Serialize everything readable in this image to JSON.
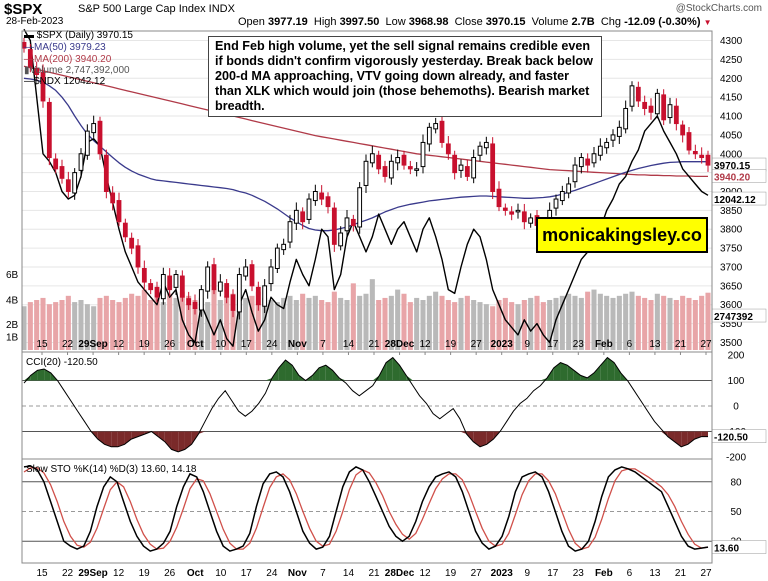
{
  "header": {
    "symbol": "$SPX",
    "description": "S&P 500 Large Cap Index INDX",
    "date": "28-Feb-2023",
    "watermark": "@StockCharts.com",
    "open_label": "Open",
    "open": "3977.19",
    "high_label": "High",
    "high": "3997.50",
    "low_label": "Low",
    "low": "3968.98",
    "close_label": "Close",
    "close": "3970.15",
    "volume_label": "Volume",
    "volume": "2.7B",
    "chg_label": "Chg",
    "chg": "-12.09 (-0.30%)"
  },
  "legend": {
    "spx": "$SPX (Daily) 3970.15",
    "ma50": "MA(50) 3979.23",
    "ma200": "MA(200) 3940.20",
    "volume": "Volume 2,747,392,000",
    "ndx": "$NDX 12042.12"
  },
  "annotation": "End Feb high volume, yet the sell signal remains credible even if bonds didn't confirm vigorously yesterday. Break back below 200-d MA approaching, VTV going down already, and faster than XLK which would join (those behemoths). Bearish market breadth.",
  "brand": "monicakingsley.co",
  "colors": {
    "up": "#000000",
    "down": "#c8102e",
    "ma50": "#3a3a8c",
    "ma200": "#b03a48",
    "ndx": "#000000",
    "vol_up": "#b9b9b9",
    "vol_down": "#e8a5a8",
    "cci_pos": "#2e6b2e",
    "cci_neg": "#7a2a2a",
    "sto_k": "#000000",
    "sto_d": "#d0504a"
  },
  "chart_data": [
    {
      "type": "candlestick",
      "title": "$SPX (Daily)",
      "ylim": [
        3480,
        4320
      ],
      "y_ticks": [
        3500,
        3550,
        3600,
        3650,
        3700,
        3750,
        3800,
        3850,
        3900,
        3950,
        4000,
        4050,
        4100,
        4150,
        4200,
        4250,
        4300
      ],
      "x_tick_labels": [
        "15",
        "22",
        "29Sep",
        "12",
        "19",
        "26",
        "Oct",
        "10",
        "17",
        "24",
        "Nov",
        "7",
        "14",
        "21",
        "28Dec",
        "12",
        "19",
        "27",
        "2023",
        "9",
        "17",
        "23",
        "Feb",
        "6",
        "13",
        "21",
        "27"
      ],
      "value_tags": {
        "close": "3970.15",
        "ma50": "3979.23",
        "ma200": "3940.20",
        "ndx": "12042.12",
        "volume": "2747392"
      },
      "series": [
        {
          "name": "$SPX (Daily)",
          "close": [
            4280,
            4230,
            4210,
            4140,
            3990,
            3960,
            3935,
            3900,
            3950,
            4000,
            4060,
            4080,
            4000,
            3900,
            3870,
            3820,
            3780,
            3750,
            3700,
            3660,
            3640,
            3620,
            3680,
            3640,
            3680,
            3620,
            3600,
            3590,
            3640,
            3700,
            3640,
            3660,
            3620,
            3585,
            3680,
            3700,
            3650,
            3600,
            3650,
            3700,
            3750,
            3760,
            3820,
            3850,
            3820,
            3880,
            3900,
            3880,
            3860,
            3760,
            3790,
            3830,
            3810,
            3910,
            3980,
            4000,
            3960,
            3940,
            3980,
            3990,
            3970,
            3960,
            3960,
            4030,
            4070,
            4080,
            4030,
            4000,
            3950,
            3970,
            3940,
            3990,
            4020,
            4030,
            3900,
            3860,
            3850,
            3840,
            3850,
            3820,
            3830,
            3810,
            3800,
            3850,
            3880,
            3900,
            3920,
            3970,
            3990,
            3970,
            4000,
            4020,
            4030,
            4050,
            4070,
            4120,
            4180,
            4140,
            4120,
            4110,
            4160,
            4090,
            4130,
            4080,
            4050,
            4010,
            4000,
            3990,
            3970
          ]
        },
        {
          "name": "MA(50)",
          "values": [
            4200,
            4198,
            4195,
            4190,
            4180,
            4168,
            4150,
            4128,
            4100,
            4075,
            4052,
            4035,
            4020,
            4005,
            3990,
            3976,
            3964,
            3954,
            3946,
            3940,
            3934,
            3930,
            3928,
            3926,
            3924,
            3922,
            3920,
            3918,
            3916,
            3914,
            3912,
            3910,
            3908,
            3905,
            3900,
            3896,
            3890,
            3882,
            3874,
            3864,
            3854,
            3842,
            3830,
            3820,
            3810,
            3802,
            3798,
            3796,
            3796,
            3798,
            3802,
            3806,
            3812,
            3818,
            3824,
            3830,
            3838,
            3846,
            3852,
            3858,
            3862,
            3866,
            3869,
            3872,
            3875,
            3877,
            3879,
            3881,
            3883,
            3885,
            3886,
            3887,
            3888,
            3888,
            3887,
            3886,
            3885,
            3884,
            3883,
            3882,
            3882,
            3883,
            3884,
            3886,
            3889,
            3893,
            3898,
            3903,
            3909,
            3915,
            3921,
            3927,
            3933,
            3939,
            3945,
            3951,
            3956,
            3961,
            3965,
            3969,
            3972,
            3975,
            3977,
            3978,
            3979,
            3979,
            3979,
            3979,
            3979
          ]
        },
        {
          "name": "MA(200)",
          "values": [
            4232,
            4228,
            4224,
            4220,
            4216,
            4212,
            4208,
            4204,
            4200,
            4196,
            4192,
            4188,
            4184,
            4180,
            4176,
            4172,
            4168,
            4164,
            4160,
            4156,
            4152,
            4148,
            4144,
            4140,
            4136,
            4132,
            4128,
            4124,
            4120,
            4116,
            4112,
            4108,
            4104,
            4100,
            4096,
            4092,
            4088,
            4084,
            4080,
            4076,
            4072,
            4068,
            4064,
            4060,
            4056,
            4052,
            4048,
            4045,
            4042,
            4039,
            4036,
            4033,
            4030,
            4027,
            4024,
            4021,
            4018,
            4015,
            4012,
            4009,
            4006,
            4003,
            4000,
            3998,
            3996,
            3994,
            3992,
            3990,
            3988,
            3986,
            3984,
            3982,
            3980,
            3978,
            3976,
            3974,
            3972,
            3970,
            3968,
            3966,
            3964,
            3962,
            3960,
            3958,
            3957,
            3956,
            3955,
            3954,
            3953,
            3952,
            3951,
            3950,
            3949,
            3948,
            3947,
            3946,
            3945,
            3944,
            3944,
            3943,
            3943,
            3942,
            3942,
            3941,
            3941,
            3941,
            3940,
            3940,
            3940
          ]
        },
        {
          "name": "$NDX",
          "values": [
            4330,
            4300,
            4150,
            4000,
            3980,
            3950,
            3900,
            3880,
            3890,
            3940,
            4030,
            4040,
            4020,
            3940,
            3870,
            3800,
            3740,
            3700,
            3660,
            3640,
            3620,
            3600,
            3660,
            3620,
            3640,
            3560,
            3520,
            3500,
            3600,
            3560,
            3520,
            3560,
            3510,
            3490,
            3600,
            3640,
            3580,
            3530,
            3560,
            3620,
            3600,
            3590,
            3660,
            3720,
            3680,
            3650,
            3720,
            3800,
            3780,
            3640,
            3680,
            3780,
            3820,
            3780,
            3740,
            3780,
            3840,
            3800,
            3760,
            3800,
            3820,
            3780,
            3740,
            3800,
            3830,
            3780,
            3720,
            3640,
            3630,
            3700,
            3760,
            3800,
            3780,
            3720,
            3640,
            3600,
            3560,
            3540,
            3520,
            3560,
            3530,
            3550,
            3520,
            3500,
            3560,
            3600,
            3640,
            3680,
            3720,
            3740,
            3760,
            3800,
            3850,
            3880,
            3920,
            3940,
            3980,
            4010,
            4060,
            4080,
            4100,
            4060,
            4030,
            4000,
            3960,
            3940,
            3920,
            3900,
            3890
          ]
        },
        {
          "name": "Volume",
          "values": [
            2.1,
            2.3,
            2.4,
            2.5,
            2.2,
            2.3,
            2.4,
            2.6,
            2.3,
            2.4,
            2.2,
            2.1,
            2.5,
            2.6,
            2.4,
            2.3,
            2.5,
            2.7,
            2.6,
            2.9,
            2.4,
            2.5,
            2.3,
            2.7,
            2.5,
            2.8,
            2.6,
            2.4,
            2.5,
            2.3,
            2.9,
            2.4,
            2.6,
            2.7,
            2.4,
            2.5,
            2.6,
            2.8,
            2.5,
            2.4,
            2.3,
            2.5,
            2.6,
            2.4,
            2.7,
            2.5,
            2.6,
            2.4,
            2.3,
            2.8,
            2.5,
            2.4,
            3.2,
            2.6,
            2.7,
            3.4,
            2.4,
            2.5,
            2.6,
            2.9,
            2.7,
            2.3,
            2.5,
            2.4,
            2.6,
            2.8,
            2.6,
            2.4,
            2.3,
            2.5,
            2.6,
            2.4,
            2.3,
            2.2,
            2.1,
            2.4,
            2.5,
            2.3,
            2.2,
            2.4,
            2.5,
            2.6,
            2.3,
            2.4,
            2.5,
            2.6,
            2.7,
            2.6,
            2.5,
            2.8,
            2.9,
            2.7,
            2.6,
            2.5,
            2.6,
            2.7,
            2.8,
            2.6,
            2.5,
            2.4,
            2.7,
            2.6,
            2.5,
            2.4,
            2.6,
            2.5,
            2.4,
            2.6,
            2.75
          ]
        }
      ]
    },
    {
      "type": "area",
      "title": "CCI(20) -120.50",
      "ylim": [
        -200,
        200
      ],
      "y_ticks": [
        -200,
        -100,
        0,
        100,
        200
      ],
      "reference_lines": [
        100,
        0,
        -100
      ],
      "value_tags": {
        "cci": "-120.50"
      },
      "series": [
        {
          "name": "CCI(20)",
          "values": [
            90,
            120,
            140,
            145,
            130,
            100,
            60,
            20,
            -20,
            -60,
            -100,
            -130,
            -150,
            -160,
            -160,
            -150,
            -130,
            -120,
            -110,
            -100,
            -120,
            -140,
            -170,
            -180,
            -170,
            -150,
            -110,
            -60,
            -10,
            30,
            60,
            20,
            -20,
            -40,
            -20,
            10,
            50,
            110,
            150,
            180,
            160,
            120,
            100,
            120,
            150,
            160,
            140,
            110,
            90,
            60,
            40,
            60,
            80,
            120,
            170,
            190,
            160,
            120,
            80,
            40,
            10,
            -30,
            -50,
            -30,
            -10,
            -50,
            -110,
            -140,
            -160,
            -150,
            -130,
            -100,
            -60,
            -20,
            10,
            30,
            60,
            80,
            110,
            150,
            170,
            160,
            140,
            120,
            110,
            130,
            160,
            190,
            170,
            130,
            100,
            60,
            20,
            -20,
            -60,
            -90,
            -120,
            -140,
            -160,
            -150,
            -130,
            -120,
            -120
          ]
        }
      ]
    },
    {
      "type": "line",
      "title": "Slow STO %K(14) %D(3) 13.60, 14.18",
      "ylim": [
        0,
        100
      ],
      "y_ticks": [
        20,
        50,
        80
      ],
      "reference_lines": [
        80,
        50,
        20
      ],
      "value_tags": {
        "k": "13.60"
      },
      "series": [
        {
          "name": "%K(14)",
          "values": [
            95,
            96,
            92,
            80,
            60,
            40,
            20,
            15,
            12,
            15,
            30,
            55,
            75,
            85,
            80,
            60,
            40,
            25,
            15,
            10,
            12,
            18,
            30,
            55,
            75,
            88,
            85,
            70,
            50,
            30,
            15,
            10,
            12,
            15,
            28,
            55,
            78,
            88,
            90,
            85,
            70,
            50,
            30,
            18,
            12,
            14,
            25,
            50,
            75,
            90,
            95,
            92,
            80,
            65,
            50,
            35,
            25,
            20,
            25,
            40,
            60,
            75,
            85,
            88,
            90,
            85,
            70,
            50,
            30,
            18,
            12,
            15,
            25,
            45,
            70,
            85,
            88,
            90,
            85,
            70,
            50,
            30,
            15,
            10,
            12,
            20,
            40,
            65,
            85,
            92,
            95,
            93,
            90,
            85,
            80,
            75,
            70,
            55,
            40,
            25,
            15,
            12,
            13,
            14
          ]
        },
        {
          "name": "%D(3)",
          "values": [
            90,
            94,
            94,
            89,
            77,
            60,
            40,
            25,
            16,
            14,
            19,
            33,
            53,
            72,
            80,
            75,
            60,
            42,
            27,
            17,
            12,
            13,
            20,
            34,
            53,
            73,
            83,
            81,
            68,
            50,
            32,
            18,
            12,
            12,
            18,
            33,
            54,
            74,
            85,
            88,
            82,
            68,
            50,
            33,
            20,
            15,
            17,
            30,
            50,
            72,
            87,
            92,
            89,
            79,
            66,
            50,
            37,
            27,
            22,
            28,
            42,
            58,
            73,
            83,
            88,
            88,
            82,
            68,
            50,
            33,
            20,
            15,
            17,
            28,
            47,
            67,
            81,
            88,
            88,
            81,
            68,
            50,
            32,
            18,
            12,
            14,
            24,
            42,
            63,
            81,
            91,
            93,
            93,
            89,
            85,
            80,
            75,
            67,
            55,
            40,
            27,
            17,
            13,
            14.18
          ]
        }
      ]
    }
  ]
}
